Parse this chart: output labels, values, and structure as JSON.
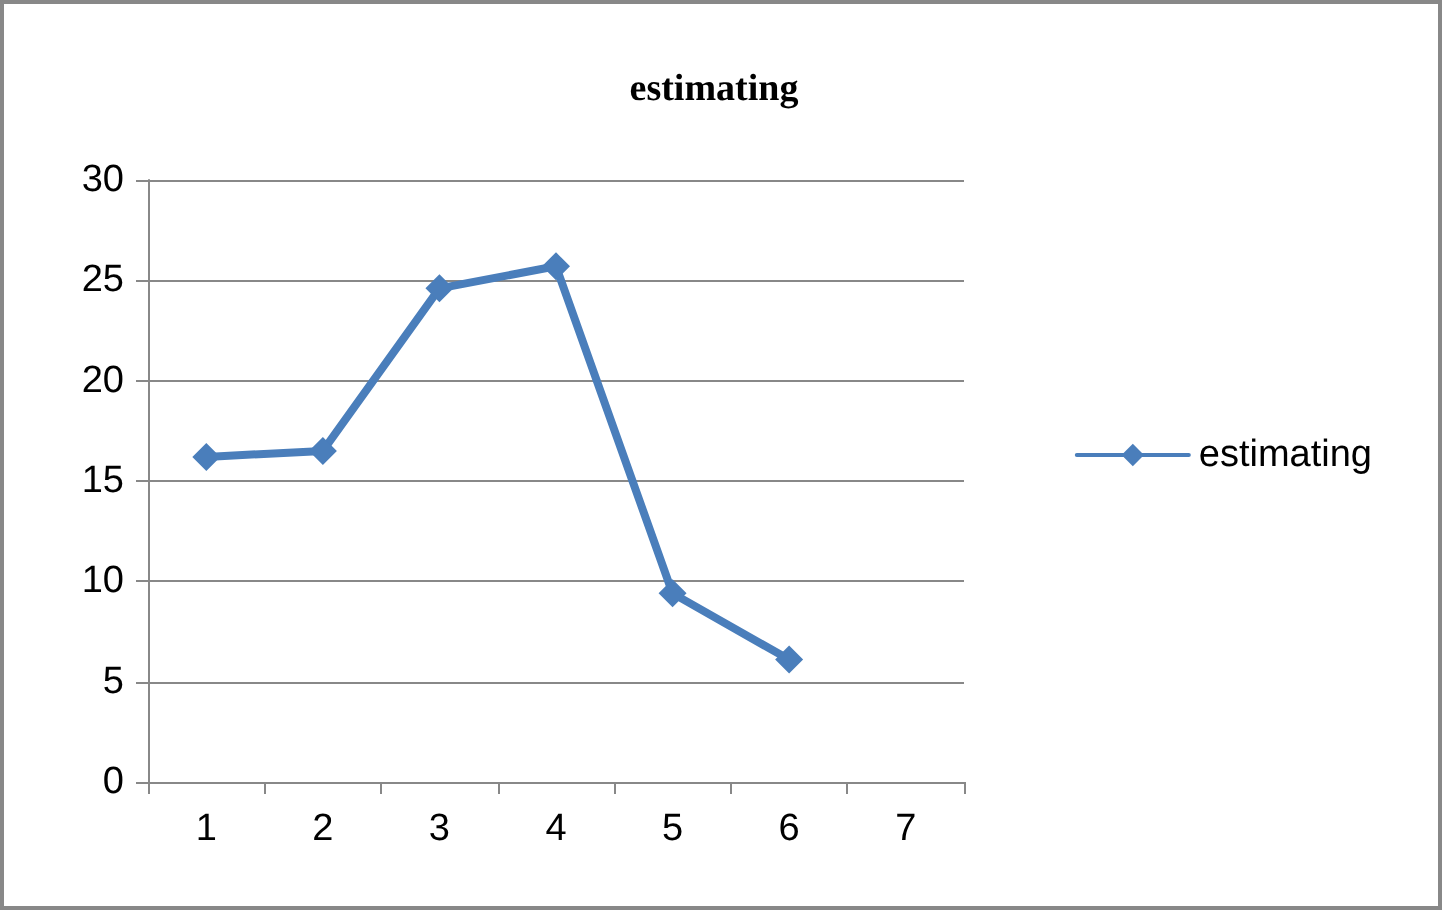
{
  "chart_data": {
    "type": "line",
    "title": "estimating",
    "categories": [
      "1",
      "2",
      "3",
      "4",
      "5",
      "6",
      "7"
    ],
    "series": [
      {
        "name": "estimating",
        "color": "#4a7ebb",
        "values": [
          16.2,
          16.5,
          24.6,
          25.7,
          9.4,
          6.1,
          null
        ]
      }
    ],
    "ylim": [
      0,
      30
    ],
    "yticks": [
      0,
      5,
      10,
      15,
      20,
      25,
      30
    ],
    "grid": "y",
    "legend": "right",
    "marker": "diamond",
    "line_style": "solid"
  }
}
